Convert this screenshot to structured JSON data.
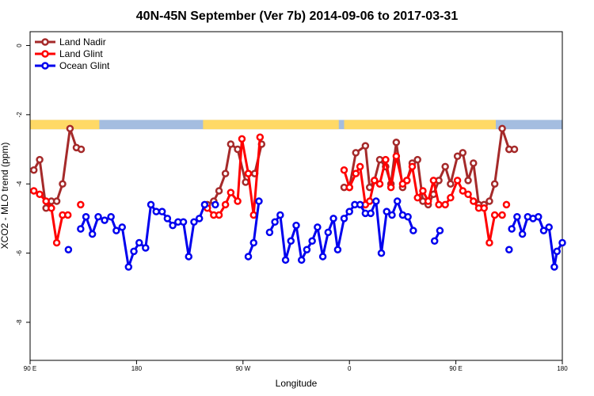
{
  "chart_data": {
    "type": "line",
    "title": "40N-45N September (Ver 7b)   2014-09-06 to 2017-03-31",
    "xlabel": "Longitude",
    "ylabel": "XCO2 - MLO trend (ppm)",
    "xlim": [
      0,
      1.0
    ],
    "ylim": [
      -9.1,
      0.4
    ],
    "x_ticks": [
      {
        "pos": 0.0,
        "label": "90 E"
      },
      {
        "pos": 0.2,
        "label": "180"
      },
      {
        "pos": 0.4,
        "label": "90 W"
      },
      {
        "pos": 0.6,
        "label": "0"
      },
      {
        "pos": 0.8,
        "label": "90 E"
      },
      {
        "pos": 1.0,
        "label": "180"
      }
    ],
    "y_ticks": [
      0,
      -2,
      -4,
      -6,
      -8
    ],
    "legend_position": "top-left",
    "land_ocean_strip": {
      "y_range": [
        -2.15,
        -2.42
      ],
      "land_color": "#ffd966",
      "ocean_color": "#a4bde0",
      "land_segments": [
        [
          0.0,
          0.13
        ],
        [
          0.325,
          0.58
        ],
        [
          0.59,
          0.875
        ]
      ]
    },
    "series": [
      {
        "name": "Land Nadir",
        "color": "#a52a2a",
        "segments": [
          {
            "x": [
              0.007,
              0.018,
              0.03,
              0.04,
              0.05,
              0.061,
              0.075,
              0.087,
              0.096
            ],
            "y": [
              -3.6,
              -3.3,
              -4.7,
              -4.5,
              -4.5,
              -4.0,
              -2.4,
              -2.95,
              -3.0
            ]
          },
          {
            "x": [
              0.333,
              0.345,
              0.355,
              0.367,
              0.377,
              0.39,
              0.405
            ],
            "y": [
              -4.6,
              -4.5,
              -4.2,
              -3.7,
              -2.85,
              -3.0,
              -3.95
            ]
          },
          {
            "x": [
              0.41,
              0.422,
              0.435
            ],
            "y": [
              -3.7,
              -3.7,
              -2.85
            ]
          },
          {
            "x": [
              0.59,
              0.6,
              0.612,
              0.63,
              0.638,
              0.647,
              0.657,
              0.668,
              0.678,
              0.688,
              0.7,
              0.708,
              0.718,
              0.728,
              0.738,
              0.748,
              0.758,
              0.768,
              0.78,
              0.79,
              0.803,
              0.813,
              0.823,
              0.833,
              0.843,
              0.853,
              0.863,
              0.873,
              0.887,
              0.9
            ],
            "y": [
              -4.1,
              -4.1,
              -3.1,
              -2.9,
              -4.1,
              -3.9,
              -3.3,
              -3.5,
              -4.0,
              -2.8,
              -4.1,
              -3.9,
              -3.4,
              -3.3,
              -4.5,
              -4.6,
              -4.3,
              -3.9,
              -3.5,
              -4.0,
              -3.2,
              -3.1,
              -3.9,
              -3.4,
              -4.6,
              -4.6,
              -4.5,
              -4.0,
              -2.4,
              -3.0
            ]
          },
          {
            "x": [
              0.9,
              0.91
            ],
            "y": [
              -3.0,
              -3.0
            ]
          }
        ]
      },
      {
        "name": "Land Glint",
        "color": "#ff0000",
        "segments": [
          {
            "x": [
              0.007,
              0.018,
              0.03,
              0.04,
              0.05,
              0.061,
              0.071
            ],
            "y": [
              -4.2,
              -4.3,
              -4.5,
              -4.7,
              -5.7,
              -4.9,
              -4.9
            ]
          },
          {
            "x": [
              0.095
            ],
            "y": [
              -4.6
            ]
          },
          {
            "x": [
              0.333,
              0.345,
              0.355,
              0.367,
              0.377,
              0.39,
              0.398,
              0.41,
              0.42,
              0.432
            ],
            "y": [
              -4.7,
              -4.9,
              -4.9,
              -4.6,
              -4.25,
              -4.5,
              -2.7,
              -3.7,
              -4.9,
              -2.65
            ]
          },
          {
            "x": [
              0.59,
              0.6,
              0.612,
              0.62,
              0.63,
              0.638,
              0.647,
              0.657,
              0.668,
              0.678,
              0.688,
              0.7,
              0.708,
              0.718,
              0.728,
              0.738,
              0.748,
              0.758,
              0.768,
              0.78,
              0.79,
              0.803,
              0.813,
              0.823,
              0.833,
              0.843,
              0.853,
              0.863,
              0.873,
              0.887
            ],
            "y": [
              -3.6,
              -4.1,
              -3.7,
              -3.5,
              -4.6,
              -4.5,
              -3.9,
              -4.0,
              -3.3,
              -4.1,
              -3.2,
              -4.0,
              -3.9,
              -3.5,
              -4.4,
              -4.2,
              -4.5,
              -3.9,
              -4.6,
              -4.6,
              -4.4,
              -3.9,
              -4.2,
              -4.3,
              -4.5,
              -4.7,
              -4.7,
              -5.7,
              -4.9,
              -4.9
            ]
          },
          {
            "x": [
              0.895
            ],
            "y": [
              -4.6
            ]
          }
        ]
      },
      {
        "name": "Ocean Glint",
        "color": "#0000ee",
        "segments": [
          {
            "x": [
              0.072
            ],
            "y": [
              -5.9
            ]
          },
          {
            "x": [
              0.095,
              0.105,
              0.117,
              0.128,
              0.14,
              0.152,
              0.162,
              0.173,
              0.185,
              0.195,
              0.205,
              0.217,
              0.227,
              0.237,
              0.248,
              0.258,
              0.268,
              0.278,
              0.288,
              0.298,
              0.308,
              0.318,
              0.328
            ],
            "y": [
              -5.3,
              -4.95,
              -5.45,
              -4.95,
              -5.05,
              -4.95,
              -5.35,
              -5.25,
              -6.4,
              -5.95,
              -5.7,
              -5.85,
              -4.6,
              -4.8,
              -4.8,
              -5.0,
              -5.2,
              -5.1,
              -5.1,
              -6.1,
              -5.1,
              -5.0,
              -4.6
            ]
          },
          {
            "x": [
              0.348
            ],
            "y": [
              -4.6
            ]
          },
          {
            "x": [
              0.41,
              0.42,
              0.43
            ],
            "y": [
              -6.1,
              -5.7,
              -4.5
            ]
          },
          {
            "x": [
              0.45,
              0.46,
              0.47,
              0.48,
              0.49,
              0.5,
              0.51,
              0.52,
              0.53,
              0.54,
              0.55,
              0.56,
              0.57,
              0.578,
              0.59,
              0.6,
              0.61,
              0.62,
              0.63,
              0.64,
              0.65,
              0.66,
              0.67,
              0.68,
              0.69,
              0.7,
              0.71,
              0.72
            ],
            "y": [
              -5.4,
              -5.1,
              -4.9,
              -6.2,
              -5.65,
              -5.2,
              -6.2,
              -5.9,
              -5.65,
              -5.25,
              -6.1,
              -5.4,
              -5.0,
              -5.9,
              -5.0,
              -4.8,
              -4.6,
              -4.6,
              -4.85,
              -4.85,
              -4.5,
              -6.0,
              -4.8,
              -4.9,
              -4.5,
              -4.9,
              -4.95,
              -5.35
            ]
          },
          {
            "x": [
              0.76,
              0.77
            ],
            "y": [
              -5.65,
              -5.35
            ]
          },
          {
            "x": [
              0.905,
              0.915,
              0.925,
              0.935,
              0.945,
              0.955,
              0.965,
              0.975,
              0.985,
              0.99,
              1.0
            ],
            "y": [
              -5.3,
              -4.95,
              -5.45,
              -4.95,
              -5.0,
              -4.95,
              -5.35,
              -5.25,
              -6.4,
              -5.95,
              -5.7
            ]
          },
          {
            "x": [
              0.9
            ],
            "y": [
              -5.9
            ]
          }
        ]
      }
    ]
  }
}
